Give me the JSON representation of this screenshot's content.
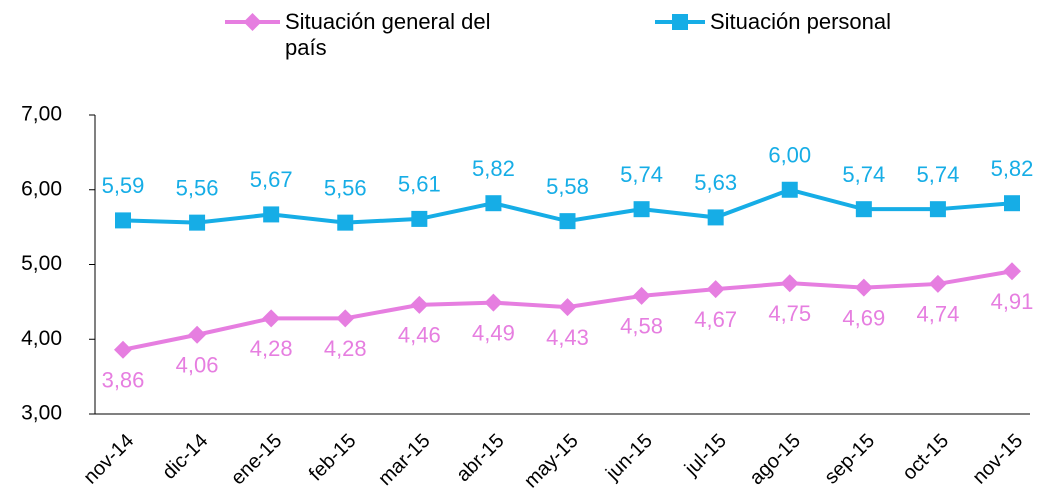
{
  "chart_data": {
    "type": "line",
    "categories": [
      "nov-14",
      "dic-14",
      "ene-15",
      "feb-15",
      "mar-15",
      "abr-15",
      "may-15",
      "jun-15",
      "jul-15",
      "ago-15",
      "sep-15",
      "oct-15",
      "nov-15"
    ],
    "series": [
      {
        "name": "Situación general del país",
        "color": "#e67ee0",
        "marker": "diamond",
        "values": [
          3.86,
          4.06,
          4.28,
          4.28,
          4.46,
          4.49,
          4.43,
          4.58,
          4.67,
          4.75,
          4.69,
          4.74,
          4.91
        ],
        "value_labels": [
          "3,86",
          "4,06",
          "4,28",
          "4,28",
          "4,46",
          "4,49",
          "4,43",
          "4,58",
          "4,67",
          "4,75",
          "4,69",
          "4,74",
          "4,91"
        ]
      },
      {
        "name": "Situación personal",
        "color": "#16ade6",
        "marker": "square",
        "values": [
          5.59,
          5.56,
          5.67,
          5.56,
          5.61,
          5.82,
          5.58,
          5.74,
          5.63,
          6.0,
          5.74,
          5.74,
          5.82
        ],
        "value_labels": [
          "5,59",
          "5,56",
          "5,67",
          "5,56",
          "5,61",
          "5,82",
          "5,58",
          "5,74",
          "5,63",
          "6,00",
          "5,74",
          "5,74",
          "5,82"
        ]
      }
    ],
    "ylim": [
      3,
      7
    ],
    "yticks": [
      {
        "value": 3,
        "label": "3,00"
      },
      {
        "value": 4,
        "label": "4,00"
      },
      {
        "value": 5,
        "label": "5,00"
      },
      {
        "value": 6,
        "label": "6,00"
      },
      {
        "value": 7,
        "label": "7,00"
      }
    ],
    "grid": false,
    "legend": "top"
  }
}
